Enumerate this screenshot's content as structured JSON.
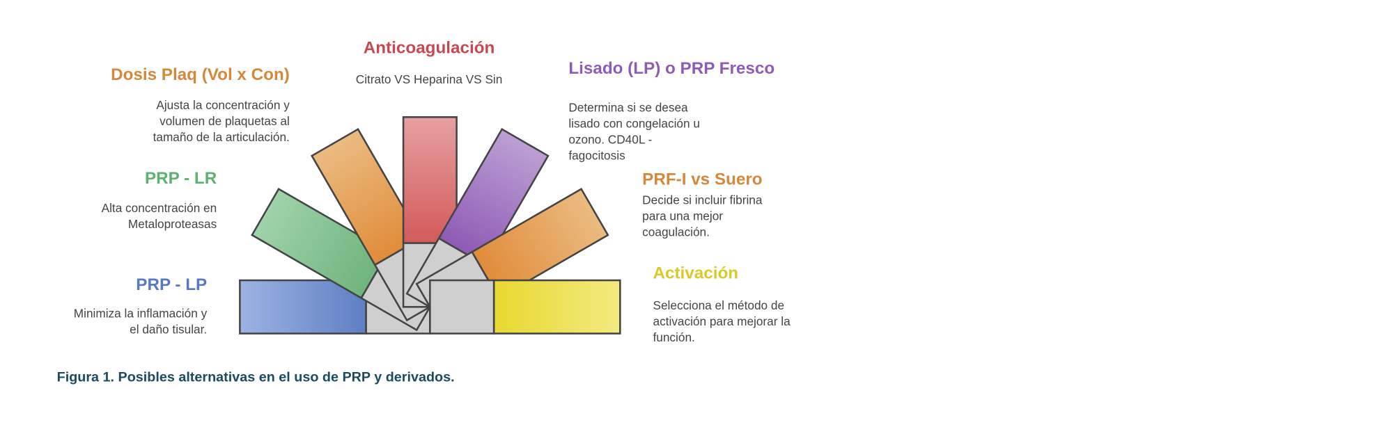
{
  "items": [
    {
      "id": "prp-lp",
      "title": "PRP - LP",
      "color": "#5b79c0",
      "lines": [
        "Minimiza la inflamación y",
        "el daño tisular."
      ],
      "fill_light": "#9db3e3",
      "fill_dark": "#5f7fc4"
    },
    {
      "id": "prp-lr",
      "title": "PRP - LR",
      "color": "#5fb173",
      "lines": [
        "Alta concentración en",
        "Metaloproteasas"
      ],
      "fill_light": "#9fd3a9",
      "fill_dark": "#6fb47e"
    },
    {
      "id": "dosis",
      "title": "Dosis Plaq (Vol x Con)",
      "color": "#d4883a",
      "lines": [
        "Ajusta la concentración y",
        "volumen de plaquetas al",
        "tamaño de la articulación."
      ],
      "fill_light": "#ebbb80",
      "fill_dark": "#e08c3a"
    },
    {
      "id": "anticoag",
      "title": "Anticoagulación",
      "color": "#c9474f",
      "lines": [
        "Citrato VS Heparina VS Sin"
      ],
      "fill_light": "#e6a0a0",
      "fill_dark": "#d35a5a"
    },
    {
      "id": "lisado",
      "title": "Lisado (LP) o  PRP Fresco",
      "color": "#8e5bb5",
      "lines": [
        "Determina si se desea",
        "lisado con congelación u",
        "ozono. CD40L -",
        "fagocitosis"
      ],
      "fill_light": "#bca0d4",
      "fill_dark": "#8e5ab5"
    },
    {
      "id": "prf",
      "title": "PRF-I vs Suero",
      "color": "#d4883a",
      "lines": [
        "Decide si incluir fibrina",
        "para una mejor",
        "coagulación."
      ],
      "fill_light": "#ebbb80",
      "fill_dark": "#e08c3a"
    },
    {
      "id": "activacion",
      "title": "Activación",
      "color": "#d9c92a",
      "lines": [
        "Selecciona el método de",
        "activación para mejorar la",
        "función."
      ],
      "fill_light": "#f2ea80",
      "fill_dark": "#e8d830"
    }
  ],
  "caption": "Figura 1. Posibles alternativas en el uso de PRP y derivados."
}
